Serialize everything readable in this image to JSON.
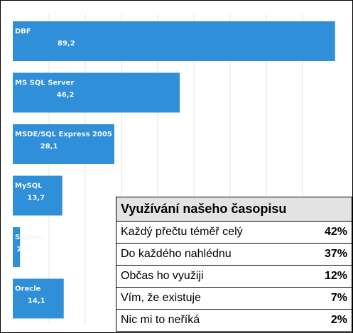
{
  "chart_data": {
    "type": "bar",
    "orientation": "horizontal",
    "categories": [
      "DBF",
      "MS SQL Server",
      "MSDE/SQL Express 2005",
      "MySQL",
      "Sybase",
      "Oracle"
    ],
    "values": [
      89.2,
      46.2,
      28.1,
      13.7,
      2.0,
      14.1
    ],
    "value_labels": [
      "89,2",
      "46,2",
      "28,1",
      "13,7",
      "2,0",
      "14,1"
    ],
    "color": "#2f8fd8",
    "xlim": [
      0,
      92
    ]
  },
  "table": {
    "title": "Využívání našeho časopisu",
    "rows": [
      [
        "Každý přečtu téměř celý",
        "42%"
      ],
      [
        "Do každého nahlédnu",
        "37%"
      ],
      [
        "Občas ho využiji",
        "12%"
      ],
      [
        "Vím, že existuje",
        "7%"
      ],
      [
        "Nic mi to neříká",
        "2%"
      ]
    ]
  }
}
